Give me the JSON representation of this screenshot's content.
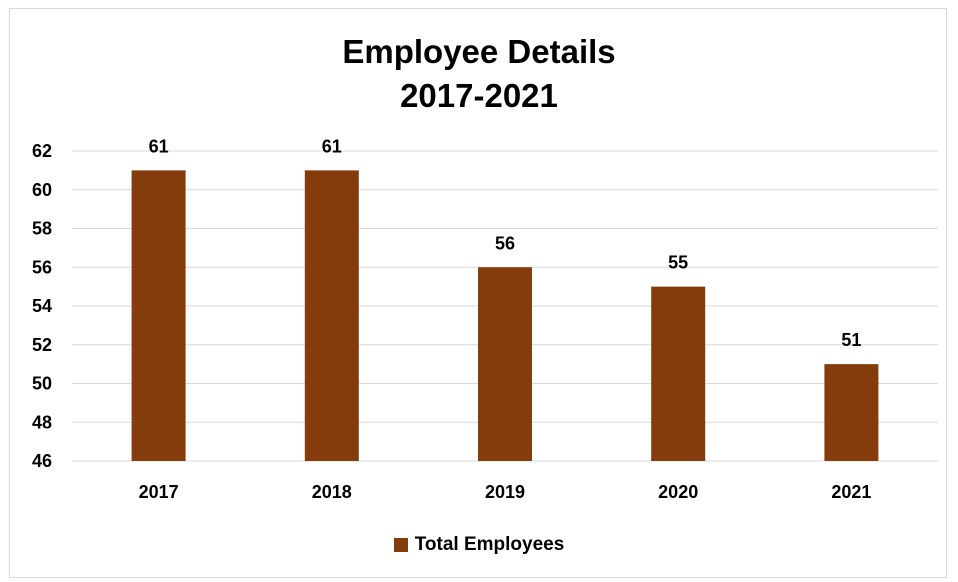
{
  "chart_data": {
    "type": "bar",
    "title": "Employee Details",
    "subtitle": "2017-2021",
    "categories": [
      "2017",
      "2018",
      "2019",
      "2020",
      "2021"
    ],
    "series": [
      {
        "name": "Total Employees",
        "values": [
          61,
          61,
          56,
          55,
          51
        ]
      }
    ],
    "ylim": [
      46,
      62
    ],
    "yticks": [
      46,
      48,
      50,
      52,
      54,
      56,
      58,
      60,
      62
    ],
    "grid": true,
    "data_labels": true,
    "legend_position": "bottom",
    "xlabel": "",
    "ylabel": ""
  },
  "colors": {
    "bar": "#843C0C",
    "grid": "#d9d9d9",
    "text": "#000000"
  }
}
